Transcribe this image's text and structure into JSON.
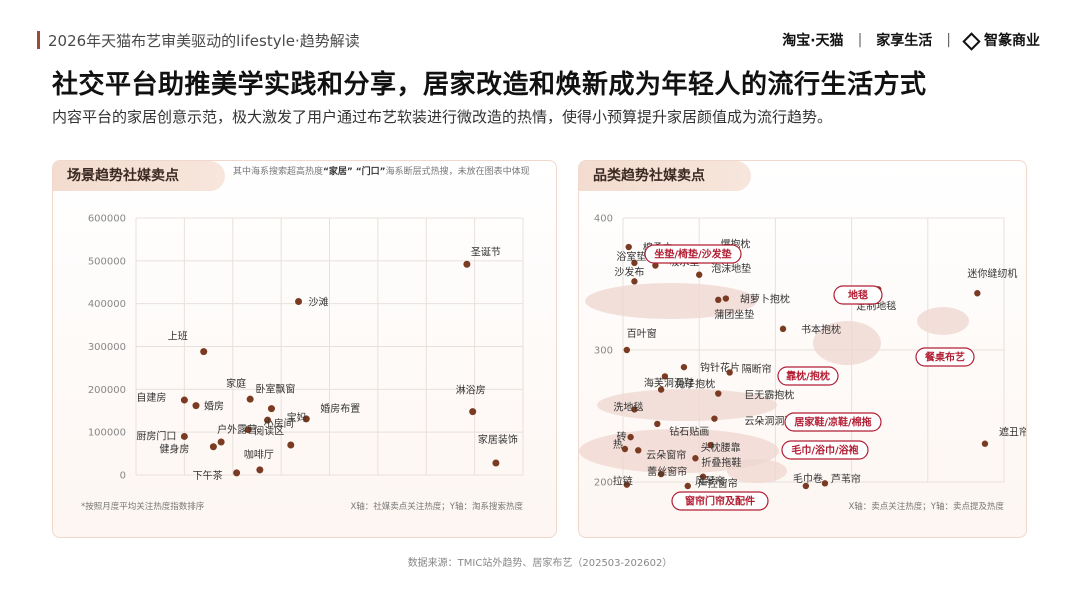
{
  "header": {
    "title": "2026年天猫布艺审美驱动的lifestyle·趋势解读",
    "brands": [
      "淘宝·天猫",
      "家享生活",
      "智篆商业"
    ],
    "separator": "|"
  },
  "headline": "社交平台助推美学实践和分享，居家改造和焕新成为年轻人的流行生活方式",
  "subline": "内容平台的家居创意示范，极大激发了用户通过布艺软装进行微改造的热情，使得小预算提升家居颜值成为流行趋势。",
  "left_panel": {
    "tab": "场景趋势社媒卖点",
    "note_prefix": "其中海系搜索超高热度",
    "note_k1": "“家居”",
    "note_k2": "“门口”",
    "note_suffix": "海系断层式热搜，未放在图表中体现",
    "footnote_left": "*按照月度平均关注热度指数排序",
    "footnote_right": "X轴：社媒卖点关注热度；Y轴：淘系搜索热度"
  },
  "right_panel": {
    "tab": "品类趋势社媒卖点",
    "footnote_right": "X轴：卖点关注热度；Y轴：卖点提及热度"
  },
  "source": "数据来源：TMIC站外趋势、居家布艺（202503-202602）",
  "colors": {
    "dot": "#7a3b22",
    "accent": "#b21e34",
    "cluster": "#efd5cf",
    "grid": "#e8e0dc"
  },
  "chart_data": [
    {
      "type": "scatter",
      "title": "场景趋势社媒卖点",
      "ylim": [
        0,
        600000
      ],
      "yticks": [
        0,
        100000,
        200000,
        300000,
        400000,
        500000,
        600000
      ],
      "yticklabels": [
        "0",
        "100000",
        "200000",
        "300000",
        "400000",
        "500000",
        "600000"
      ],
      "xlim": [
        0,
        100
      ],
      "points": [
        {
          "label": "圣诞节",
          "x": 85.5,
          "y": 492000
        },
        {
          "label": "沙滩",
          "x": 42,
          "y": 405000
        },
        {
          "label": "上班",
          "x": 17.5,
          "y": 288000
        },
        {
          "label": "淋浴房",
          "x": 87,
          "y": 148000
        },
        {
          "label": "卧室飘窗",
          "x": 35,
          "y": 155000
        },
        {
          "label": "家庭",
          "x": 29.5,
          "y": 177000
        },
        {
          "label": "自建房",
          "x": 12.5,
          "y": 175000
        },
        {
          "label": "婚房",
          "x": 15.5,
          "y": 162000
        },
        {
          "label": "小房间",
          "x": 34,
          "y": 128000
        },
        {
          "label": "婚房布置",
          "x": 44,
          "y": 131000
        },
        {
          "label": "阅读区",
          "x": 29,
          "y": 106000
        },
        {
          "label": "户外露营",
          "x": 22,
          "y": 77000
        },
        {
          "label": "厨房门口",
          "x": 12.5,
          "y": 90000
        },
        {
          "label": "健身房",
          "x": 20,
          "y": 66000
        },
        {
          "label": "宝妈",
          "x": 40,
          "y": 70000
        },
        {
          "label": "家居装饰",
          "x": 93,
          "y": 28000
        },
        {
          "label": "咖啡厅",
          "x": 32,
          "y": 12000
        },
        {
          "label": "下午茶",
          "x": 26,
          "y": 5000
        }
      ]
    },
    {
      "type": "scatter",
      "title": "品类趋势社媒卖点",
      "ylim": [
        200,
        400
      ],
      "yticks": [
        200,
        300,
        400
      ],
      "yticklabels": [
        "200",
        "300",
        "400"
      ],
      "xlim": [
        0,
        100
      ],
      "points": [
        {
          "label": "棉柔巾",
          "x": 1.5,
          "y": 378
        },
        {
          "label": "爆抱枕",
          "x": 24,
          "y": 376
        },
        {
          "label": "浴室垫",
          "x": 3,
          "y": 366
        },
        {
          "label": "吸水垫",
          "x": 8.5,
          "y": 364
        },
        {
          "label": "泡沫地垫",
          "x": 20,
          "y": 357
        },
        {
          "label": "沙发布",
          "x": 3,
          "y": 352
        },
        {
          "label": "胡萝卜抱枕",
          "x": 27,
          "y": 339
        },
        {
          "label": "蒲团坐垫",
          "x": 25,
          "y": 338
        },
        {
          "label": "定制地毯",
          "x": 67,
          "y": 346
        },
        {
          "label": "迷你缝纫机",
          "x": 93,
          "y": 343
        },
        {
          "label": "百叶窗",
          "x": 1,
          "y": 300
        },
        {
          "label": "书本抱枕",
          "x": 42,
          "y": 316
        },
        {
          "label": "钩针花片",
          "x": 16,
          "y": 287
        },
        {
          "label": "隔断帘",
          "x": 28,
          "y": 283
        },
        {
          "label": "海芙洞洞鞋",
          "x": 11,
          "y": 280
        },
        {
          "label": "兔子抱枕",
          "x": 10,
          "y": 270
        },
        {
          "label": "巨无霸抱枕",
          "x": 25,
          "y": 267
        },
        {
          "label": "洗地毯",
          "x": 3,
          "y": 255
        },
        {
          "label": "钻石贴画",
          "x": 9,
          "y": 244
        },
        {
          "label": "云朵洞洞鞋",
          "x": 24,
          "y": 248
        },
        {
          "label": "砖",
          "x": 2,
          "y": 234
        },
        {
          "label": "热",
          "x": 0.5,
          "y": 225
        },
        {
          "label": "云朵窗帘",
          "x": 4,
          "y": 224
        },
        {
          "label": "头枕腰靠",
          "x": 23,
          "y": 228
        },
        {
          "label": "折叠拖鞋",
          "x": 19,
          "y": 218
        },
        {
          "label": "遮丑帘",
          "x": 95,
          "y": 229
        },
        {
          "label": "蕾丝窗帘",
          "x": 10,
          "y": 206
        },
        {
          "label": "风琴帘",
          "x": 21,
          "y": 204
        },
        {
          "label": "拉链",
          "x": 1,
          "y": 198
        },
        {
          "label": "声控窗帘",
          "x": 17,
          "y": 197
        },
        {
          "label": "毛巾卷",
          "x": 48,
          "y": 197
        },
        {
          "label": "芦苇帘",
          "x": 53,
          "y": 199
        }
      ],
      "category_tags": [
        "坐垫/椅垫/沙发垫",
        "地毯",
        "餐桌布艺",
        "靠枕/抱枕",
        "居家鞋/凉鞋/棉拖",
        "毛巾/浴巾/浴袍",
        "窗帘门帘及配件"
      ]
    }
  ]
}
